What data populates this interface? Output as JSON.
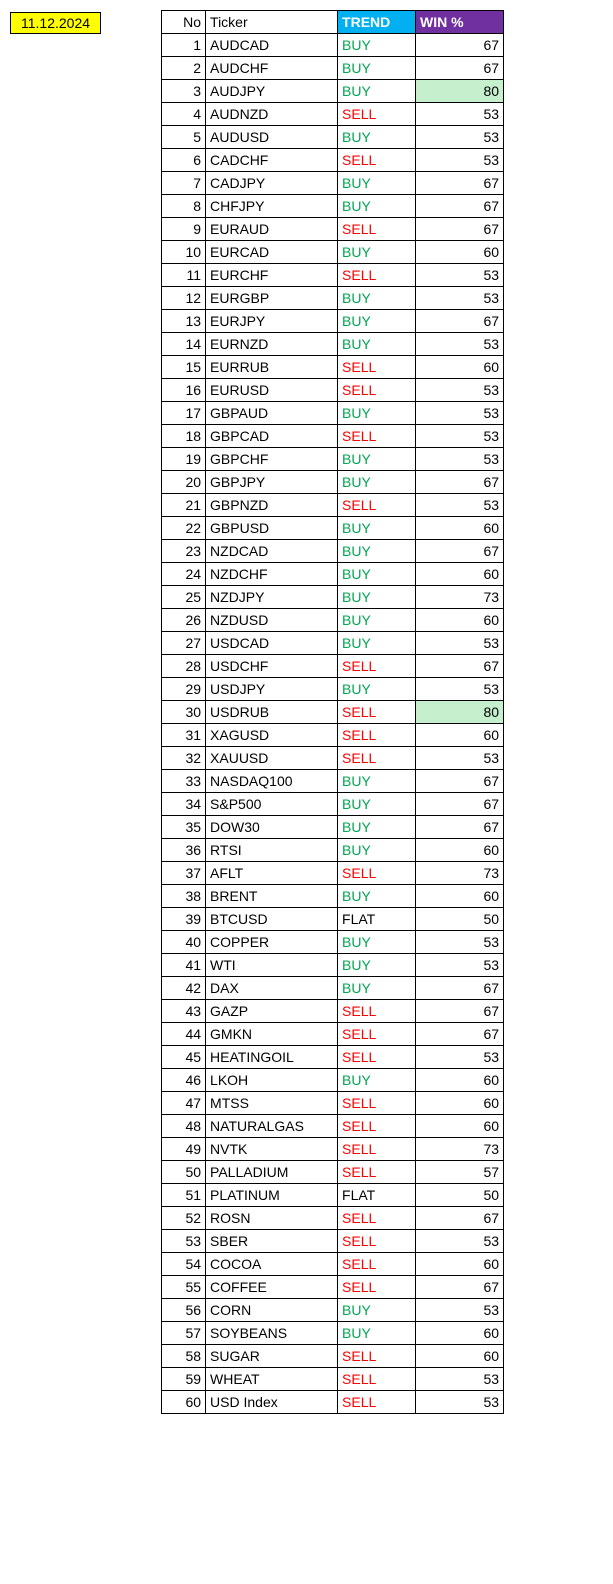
{
  "date": "11.12.2024",
  "headers": {
    "no": "No",
    "ticker": "Ticker",
    "trend": "TREND",
    "win": "WIN %"
  },
  "highlight_color": "#c6efce",
  "trend_colors": {
    "BUY": "#00a84f",
    "SELL": "#ff0000",
    "FLAT": "#000000"
  },
  "rows": [
    {
      "no": 1,
      "ticker": "AUDCAD",
      "trend": "BUY",
      "win": 67
    },
    {
      "no": 2,
      "ticker": "AUDCHF",
      "trend": "BUY",
      "win": 67
    },
    {
      "no": 3,
      "ticker": "AUDJPY",
      "trend": "BUY",
      "win": 80,
      "highlight": true
    },
    {
      "no": 4,
      "ticker": "AUDNZD",
      "trend": "SELL",
      "win": 53
    },
    {
      "no": 5,
      "ticker": "AUDUSD",
      "trend": "BUY",
      "win": 53
    },
    {
      "no": 6,
      "ticker": "CADCHF",
      "trend": "SELL",
      "win": 53
    },
    {
      "no": 7,
      "ticker": "CADJPY",
      "trend": "BUY",
      "win": 67
    },
    {
      "no": 8,
      "ticker": "CHFJPY",
      "trend": "BUY",
      "win": 67
    },
    {
      "no": 9,
      "ticker": "EURAUD",
      "trend": "SELL",
      "win": 67
    },
    {
      "no": 10,
      "ticker": "EURCAD",
      "trend": "BUY",
      "win": 60
    },
    {
      "no": 11,
      "ticker": "EURCHF",
      "trend": "SELL",
      "win": 53
    },
    {
      "no": 12,
      "ticker": "EURGBP",
      "trend": "BUY",
      "win": 53
    },
    {
      "no": 13,
      "ticker": "EURJPY",
      "trend": "BUY",
      "win": 67
    },
    {
      "no": 14,
      "ticker": "EURNZD",
      "trend": "BUY",
      "win": 53
    },
    {
      "no": 15,
      "ticker": "EURRUB",
      "trend": "SELL",
      "win": 60
    },
    {
      "no": 16,
      "ticker": "EURUSD",
      "trend": "SELL",
      "win": 53
    },
    {
      "no": 17,
      "ticker": "GBPAUD",
      "trend": "BUY",
      "win": 53
    },
    {
      "no": 18,
      "ticker": "GBPCAD",
      "trend": "SELL",
      "win": 53
    },
    {
      "no": 19,
      "ticker": "GBPCHF",
      "trend": "BUY",
      "win": 53
    },
    {
      "no": 20,
      "ticker": "GBPJPY",
      "trend": "BUY",
      "win": 67
    },
    {
      "no": 21,
      "ticker": "GBPNZD",
      "trend": "SELL",
      "win": 53
    },
    {
      "no": 22,
      "ticker": "GBPUSD",
      "trend": "BUY",
      "win": 60
    },
    {
      "no": 23,
      "ticker": "NZDCAD",
      "trend": "BUY",
      "win": 67
    },
    {
      "no": 24,
      "ticker": "NZDCHF",
      "trend": "BUY",
      "win": 60
    },
    {
      "no": 25,
      "ticker": "NZDJPY",
      "trend": "BUY",
      "win": 73
    },
    {
      "no": 26,
      "ticker": "NZDUSD",
      "trend": "BUY",
      "win": 60
    },
    {
      "no": 27,
      "ticker": "USDCAD",
      "trend": "BUY",
      "win": 53
    },
    {
      "no": 28,
      "ticker": "USDCHF",
      "trend": "SELL",
      "win": 67
    },
    {
      "no": 29,
      "ticker": "USDJPY",
      "trend": "BUY",
      "win": 53
    },
    {
      "no": 30,
      "ticker": "USDRUB",
      "trend": "SELL",
      "win": 80,
      "highlight": true
    },
    {
      "no": 31,
      "ticker": "XAGUSD",
      "trend": "SELL",
      "win": 60
    },
    {
      "no": 32,
      "ticker": "XAUUSD",
      "trend": "SELL",
      "win": 53
    },
    {
      "no": 33,
      "ticker": "NASDAQ100",
      "trend": "BUY",
      "win": 67
    },
    {
      "no": 34,
      "ticker": "S&P500",
      "trend": "BUY",
      "win": 67
    },
    {
      "no": 35,
      "ticker": "DOW30",
      "trend": "BUY",
      "win": 67
    },
    {
      "no": 36,
      "ticker": "RTSI",
      "trend": "BUY",
      "win": 60
    },
    {
      "no": 37,
      "ticker": "AFLT",
      "trend": "SELL",
      "win": 73
    },
    {
      "no": 38,
      "ticker": "BRENT",
      "trend": "BUY",
      "win": 60
    },
    {
      "no": 39,
      "ticker": "BTCUSD",
      "trend": "FLAT",
      "win": 50
    },
    {
      "no": 40,
      "ticker": "COPPER",
      "trend": "BUY",
      "win": 53
    },
    {
      "no": 41,
      "ticker": "WTI",
      "trend": "BUY",
      "win": 53
    },
    {
      "no": 42,
      "ticker": "DAX",
      "trend": "BUY",
      "win": 67
    },
    {
      "no": 43,
      "ticker": "GAZP",
      "trend": "SELL",
      "win": 67
    },
    {
      "no": 44,
      "ticker": "GMKN",
      "trend": "SELL",
      "win": 67
    },
    {
      "no": 45,
      "ticker": "HEATINGOIL",
      "trend": "SELL",
      "win": 53
    },
    {
      "no": 46,
      "ticker": "LKOH",
      "trend": "BUY",
      "win": 60
    },
    {
      "no": 47,
      "ticker": "MTSS",
      "trend": "SELL",
      "win": 60
    },
    {
      "no": 48,
      "ticker": "NATURALGAS",
      "trend": "SELL",
      "win": 60
    },
    {
      "no": 49,
      "ticker": "NVTK",
      "trend": "SELL",
      "win": 73
    },
    {
      "no": 50,
      "ticker": "PALLADIUM",
      "trend": "SELL",
      "win": 57
    },
    {
      "no": 51,
      "ticker": "PLATINUM",
      "trend": "FLAT",
      "win": 50
    },
    {
      "no": 52,
      "ticker": "ROSN",
      "trend": "SELL",
      "win": 67
    },
    {
      "no": 53,
      "ticker": "SBER",
      "trend": "SELL",
      "win": 53
    },
    {
      "no": 54,
      "ticker": "COCOA",
      "trend": "SELL",
      "win": 60
    },
    {
      "no": 55,
      "ticker": "COFFEE",
      "trend": "SELL",
      "win": 67
    },
    {
      "no": 56,
      "ticker": "CORN",
      "trend": "BUY",
      "win": 53
    },
    {
      "no": 57,
      "ticker": "SOYBEANS",
      "trend": "BUY",
      "win": 60
    },
    {
      "no": 58,
      "ticker": "SUGAR",
      "trend": "SELL",
      "win": 60
    },
    {
      "no": 59,
      "ticker": "WHEAT",
      "trend": "SELL",
      "win": 53
    },
    {
      "no": 60,
      "ticker": "USD Index",
      "trend": "SELL",
      "win": 53
    }
  ]
}
